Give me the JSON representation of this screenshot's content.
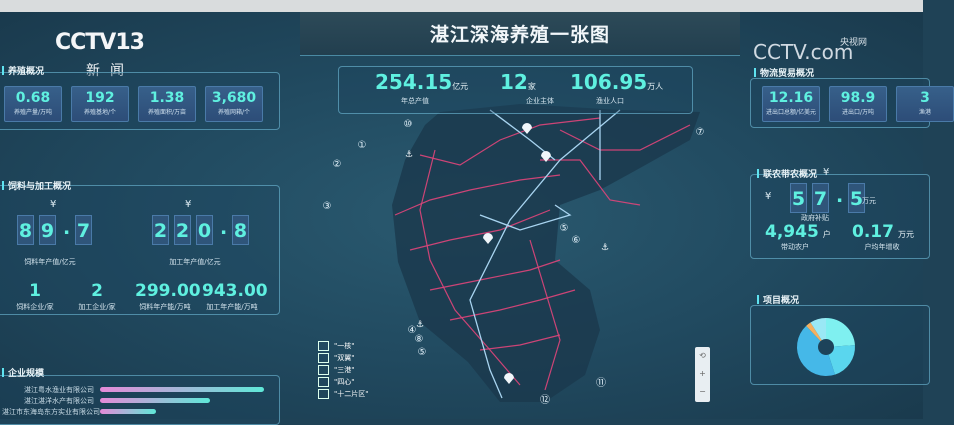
{
  "broadcast": {
    "channel_logo": "CCTV13",
    "channel_name": "新闻",
    "site_logo": "CCTV.com",
    "site_name": "央视网"
  },
  "header": {
    "title": "湛江深海养殖一张图"
  },
  "summary": [
    {
      "value": "254.15",
      "unit": "亿元",
      "label": "年总产值"
    },
    {
      "value": "12",
      "unit": "家",
      "label": "企业主体"
    },
    {
      "value": "106.95",
      "unit": "万人",
      "label": "渔业人口"
    }
  ],
  "left": {
    "breeding": {
      "title": "养殖概况",
      "cards": [
        {
          "value": "0.68",
          "label": "养殖产量/万吨"
        },
        {
          "value": "192",
          "label": "养殖基地/个"
        },
        {
          "value": "1.38",
          "label": "养殖面积/万亩"
        },
        {
          "value": "3,680",
          "label": "养殖网箱/个"
        }
      ]
    },
    "feed": {
      "title": "饲料与加工概况",
      "feed_value": {
        "currency": "¥",
        "digits": [
          "8",
          "9",
          ".",
          "7"
        ],
        "label": "饲料年产值/亿元"
      },
      "proc_value": {
        "currency": "¥",
        "digits": [
          "2",
          "2",
          "0",
          ".",
          "8"
        ],
        "label": "加工年产值/亿元"
      },
      "stats": [
        {
          "value": "1",
          "label": "饲料企业/家"
        },
        {
          "value": "2",
          "label": "加工企业/家"
        },
        {
          "value": "299.00",
          "label": "饲料年产能/万吨"
        },
        {
          "value": "943.00",
          "label": "加工年产能/万吨"
        }
      ]
    },
    "scale": {
      "title": "企业规模",
      "companies": [
        {
          "name": "湛江粤水渔业有限公司",
          "share": 1.0
        },
        {
          "name": "湛江湛洋水产有限公司",
          "share": 0.67
        },
        {
          "name": "湛江市东海岛东方实业有限公司",
          "share": 0.34
        }
      ]
    }
  },
  "right": {
    "trade": {
      "title": "物流贸易概况",
      "cards": [
        {
          "value": "12.16",
          "label": "进出口总额/亿美元"
        },
        {
          "value": "98.9",
          "label": "进出口/万吨"
        },
        {
          "value": "3",
          "label": "渔港"
        }
      ]
    },
    "farmers": {
      "title": "联农带农概况",
      "subsidy": {
        "currency": "¥",
        "digits": [
          "5",
          "7",
          ".",
          "5"
        ],
        "unit": "万元",
        "label": "政府补贴"
      },
      "households": {
        "value": "4,945",
        "unit": "户",
        "label": "带动农户"
      },
      "income": {
        "value": "0.17",
        "unit": "万元",
        "label": "户均年增收"
      }
    },
    "projects": {
      "title": "项目概况",
      "pie_colors": [
        "#7ff0f0",
        "#5ad6ee",
        "#45b8e8",
        "#f5b060",
        "#9ae8f5"
      ],
      "pie_shares": [
        24,
        21,
        43,
        3,
        9
      ]
    }
  },
  "map": {
    "legend": [
      {
        "icon": "core-icon",
        "label": "\"一核\""
      },
      {
        "icon": "wings-icon",
        "label": "\"双翼\""
      },
      {
        "icon": "port-anchor-icon",
        "label": "\"三港\""
      },
      {
        "icon": "center-icon",
        "label": "\"四心\""
      },
      {
        "icon": "zone-number-icon",
        "label": "\"十二片区\""
      }
    ],
    "zones": [
      "⑩",
      "①",
      "②",
      "③",
      "⑦",
      "⑤",
      "⑥",
      "④",
      "⑧",
      "⑤",
      "⑪",
      "⑫"
    ],
    "road_color": "#e0457a",
    "rail_color": "#a8d4f0",
    "zoom_controls": [
      "⟲",
      "+",
      "−"
    ]
  }
}
